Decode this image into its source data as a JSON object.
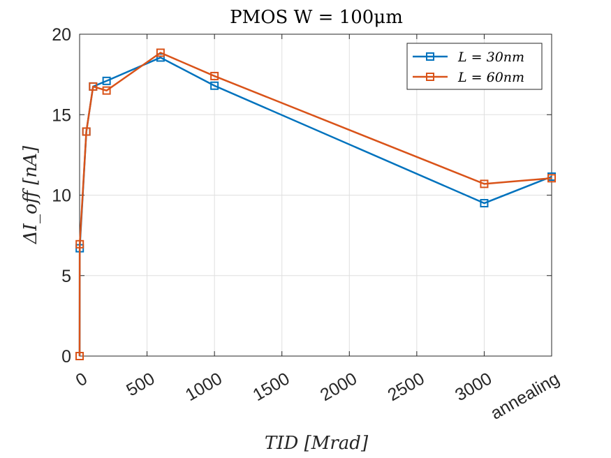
{
  "chart_data": {
    "type": "line",
    "title": "PMOS W = 100μm",
    "xlabel": "TID [Mrad]",
    "ylabel": "ΔI_off [nA]",
    "xlim": [
      0,
      3500
    ],
    "ylim": [
      0,
      20
    ],
    "x_ticks": [
      {
        "value": 0,
        "label": "0"
      },
      {
        "value": 500,
        "label": "500"
      },
      {
        "value": 1000,
        "label": "1000"
      },
      {
        "value": 1500,
        "label": "1500"
      },
      {
        "value": 2000,
        "label": "2000"
      },
      {
        "value": 2500,
        "label": "2500"
      },
      {
        "value": 3000,
        "label": "3000"
      },
      {
        "value": 3500,
        "label": "annealing"
      }
    ],
    "y_ticks": [
      0,
      5,
      10,
      15,
      20
    ],
    "grid": true,
    "legend_position": "top-right",
    "x": [
      0,
      1,
      50,
      100,
      200,
      600,
      1000,
      3000,
      3500
    ],
    "series": [
      {
        "name": "L = 30nm",
        "color": "#0072BD",
        "marker": "square",
        "values": [
          0,
          6.7,
          13.95,
          16.75,
          17.1,
          18.55,
          16.8,
          9.5,
          11.15
        ]
      },
      {
        "name": "L = 60nm",
        "color": "#D95319",
        "marker": "square",
        "values": [
          0,
          6.95,
          13.95,
          16.75,
          16.5,
          18.85,
          17.4,
          10.7,
          11.05
        ]
      }
    ]
  }
}
